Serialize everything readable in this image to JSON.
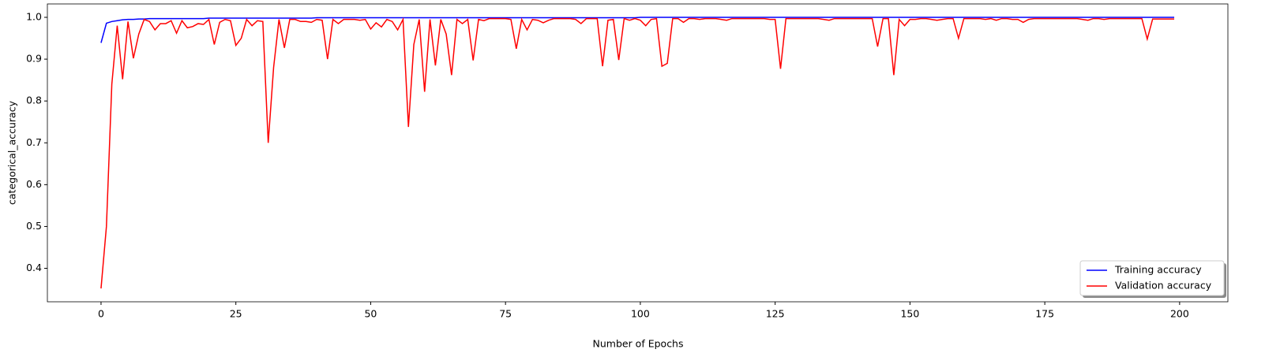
{
  "chart_data": {
    "type": "line",
    "xlabel": "Number of Epochs",
    "ylabel": "categorical_accuracy",
    "x": [
      0,
      1,
      2,
      3,
      4,
      5,
      6,
      7,
      8,
      9,
      10,
      11,
      12,
      13,
      14,
      15,
      16,
      17,
      18,
      19,
      20,
      21,
      22,
      23,
      24,
      25,
      26,
      27,
      28,
      29,
      30,
      31,
      32,
      33,
      34,
      35,
      36,
      37,
      38,
      39,
      40,
      41,
      42,
      43,
      44,
      45,
      46,
      47,
      48,
      49,
      50,
      51,
      52,
      53,
      54,
      55,
      56,
      57,
      58,
      59,
      60,
      61,
      62,
      63,
      64,
      65,
      66,
      67,
      68,
      69,
      70,
      71,
      72,
      73,
      74,
      75,
      76,
      77,
      78,
      79,
      80,
      81,
      82,
      83,
      84,
      85,
      86,
      87,
      88,
      89,
      90,
      91,
      92,
      93,
      94,
      95,
      96,
      97,
      98,
      99,
      100,
      101,
      102,
      103,
      104,
      105,
      106,
      107,
      108,
      109,
      110,
      111,
      112,
      113,
      114,
      115,
      116,
      117,
      118,
      119,
      120,
      121,
      122,
      123,
      124,
      125,
      126,
      127,
      128,
      129,
      130,
      131,
      132,
      133,
      134,
      135,
      136,
      137,
      138,
      139,
      140,
      141,
      142,
      143,
      144,
      145,
      146,
      147,
      148,
      149,
      150,
      151,
      152,
      153,
      154,
      155,
      156,
      157,
      158,
      159,
      160,
      161,
      162,
      163,
      164,
      165,
      166,
      167,
      168,
      169,
      170,
      171,
      172,
      173,
      174,
      175,
      176,
      177,
      178,
      179,
      180,
      181,
      182,
      183,
      184,
      185,
      186,
      187,
      188,
      189,
      190,
      191,
      192,
      193,
      194,
      195,
      196,
      197,
      198,
      199
    ],
    "series": [
      {
        "name": "Training accuracy",
        "color": "#0000ff",
        "values": [
          0.939,
          0.986,
          0.99,
          0.992,
          0.994,
          0.995,
          0.995,
          0.996,
          0.996,
          0.997,
          0.997,
          0.997,
          0.997,
          0.997,
          0.997,
          0.997,
          0.997,
          0.997,
          0.997,
          0.997,
          0.998,
          0.998,
          0.998,
          0.998,
          0.998,
          0.998,
          0.998,
          0.998,
          0.998,
          0.998,
          0.998,
          0.998,
          0.998,
          0.998,
          0.998,
          0.998,
          0.998,
          0.998,
          0.998,
          0.998,
          0.999,
          0.999,
          0.999,
          0.999,
          0.999,
          0.999,
          0.999,
          0.999,
          0.999,
          0.999,
          0.999,
          0.999,
          0.999,
          0.999,
          0.999,
          0.999,
          0.999,
          0.999,
          0.999,
          0.999,
          0.999,
          0.999,
          0.999,
          0.999,
          0.999,
          0.999,
          0.999,
          0.999,
          0.999,
          0.999,
          0.999,
          0.999,
          0.999,
          0.999,
          0.999,
          0.999,
          0.999,
          0.999,
          0.999,
          0.999,
          0.999,
          0.999,
          0.999,
          0.999,
          0.999,
          0.999,
          0.999,
          0.999,
          0.999,
          0.999,
          0.999,
          0.999,
          0.999,
          0.999,
          0.999,
          0.999,
          0.999,
          0.999,
          0.999,
          0.999,
          1,
          1,
          1,
          1,
          1,
          1,
          1,
          1,
          1,
          1,
          1,
          1,
          1,
          1,
          1,
          1,
          1,
          1,
          1,
          1,
          1,
          1,
          1,
          1,
          1,
          1,
          1,
          1,
          1,
          1,
          1,
          1,
          1,
          1,
          1,
          1,
          1,
          1,
          1,
          1,
          1,
          1,
          1,
          1,
          1,
          1,
          1,
          1,
          1,
          1,
          1,
          1,
          1,
          1,
          1,
          1,
          1,
          1,
          1,
          1,
          1,
          1,
          1,
          1,
          1,
          1,
          1,
          1,
          1,
          1,
          1,
          1,
          1,
          1,
          1,
          1,
          1,
          1,
          1,
          1,
          1,
          1,
          1,
          1,
          1,
          1,
          1,
          1,
          1,
          1,
          1,
          1,
          1,
          1,
          1,
          1,
          1,
          1,
          1,
          1
        ]
      },
      {
        "name": "Validation accuracy",
        "color": "#ff0000",
        "values": [
          0.352,
          0.5,
          0.84,
          0.98,
          0.852,
          0.99,
          0.902,
          0.96,
          0.995,
          0.99,
          0.97,
          0.985,
          0.985,
          0.992,
          0.962,
          0.992,
          0.975,
          0.978,
          0.985,
          0.983,
          0.995,
          0.935,
          0.988,
          0.995,
          0.992,
          0.933,
          0.95,
          0.995,
          0.98,
          0.992,
          0.99,
          0.7,
          0.88,
          0.995,
          0.927,
          0.995,
          0.995,
          0.99,
          0.99,
          0.988,
          0.995,
          0.993,
          0.9,
          0.995,
          0.985,
          0.995,
          0.995,
          0.995,
          0.993,
          0.995,
          0.972,
          0.987,
          0.977,
          0.995,
          0.99,
          0.97,
          0.995,
          0.738,
          0.935,
          0.995,
          0.822,
          0.995,
          0.885,
          0.995,
          0.96,
          0.862,
          0.995,
          0.985,
          0.995,
          0.897,
          0.995,
          0.992,
          0.997,
          0.997,
          0.997,
          0.997,
          0.995,
          0.925,
          0.995,
          0.97,
          0.995,
          0.993,
          0.987,
          0.993,
          0.997,
          0.997,
          0.997,
          0.997,
          0.995,
          0.985,
          0.997,
          0.997,
          0.997,
          0.883,
          0.993,
          0.995,
          0.898,
          0.997,
          0.993,
          0.997,
          0.993,
          0.98,
          0.995,
          0.997,
          0.883,
          0.89,
          0.997,
          0.997,
          0.988,
          0.997,
          0.997,
          0.995,
          0.997,
          0.997,
          0.997,
          0.995,
          0.993,
          0.997,
          0.997,
          0.997,
          0.997,
          0.997,
          0.997,
          0.997,
          0.995,
          0.995,
          0.877,
          0.997,
          0.997,
          0.997,
          0.997,
          0.997,
          0.997,
          0.997,
          0.995,
          0.993,
          0.997,
          0.997,
          0.997,
          0.997,
          0.997,
          0.997,
          0.997,
          0.997,
          0.93,
          0.997,
          0.997,
          0.862,
          0.995,
          0.98,
          0.995,
          0.995,
          0.997,
          0.997,
          0.995,
          0.993,
          0.995,
          0.997,
          0.997,
          0.95,
          0.997,
          0.997,
          0.997,
          0.997,
          0.995,
          0.997,
          0.993,
          0.997,
          0.997,
          0.995,
          0.995,
          0.988,
          0.995,
          0.997,
          0.997,
          0.997,
          0.997,
          0.997,
          0.997,
          0.997,
          0.997,
          0.997,
          0.995,
          0.993,
          0.997,
          0.997,
          0.995,
          0.997,
          0.997,
          0.997,
          0.997,
          0.997,
          0.997,
          0.997,
          0.948,
          0.996,
          0.996,
          0.996,
          0.996,
          0.996
        ]
      }
    ],
    "xlim": [
      -9.95,
      208.95
    ],
    "xticks": [
      0,
      25,
      50,
      75,
      100,
      125,
      150,
      175,
      200
    ],
    "ylim": [
      0.32,
      1.032
    ],
    "yticks": [
      0.4,
      0.5,
      0.6,
      0.7,
      0.8,
      0.9,
      {
        "value": 1,
        "label": "1.0"
      }
    ],
    "legend": "lower right",
    "grid": false
  }
}
